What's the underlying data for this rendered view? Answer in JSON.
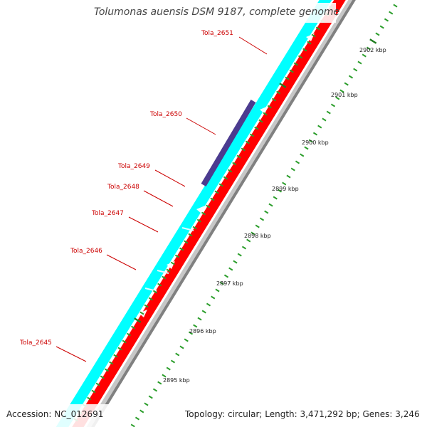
{
  "title": "Tolumonas auensis DSM 9187, complete genome",
  "accession_text": "Accession: NC_012691",
  "summary_text": "Topology: circular; Length: 3,471,292 bp; Genes: 3,246",
  "colors": {
    "forward_gene": "#00ffff",
    "reverse_gene": "#ff0000",
    "highlight_gene": "#4b3b8f",
    "backbone": "#808080",
    "major_tick": "#1f7d1f",
    "minor_tick": "#2a9d2a",
    "gene_label": "#cc0000"
  },
  "gene_labels": [
    "Tola_2651",
    "Tola_2650",
    "Tola_2649",
    "Tola_2648",
    "Tola_2647",
    "Tola_2646",
    "Tola_2645"
  ],
  "kbp_labels": [
    "2902 kbp",
    "2901 kbp",
    "2900 kbp",
    "2899 kbp",
    "2898 kbp",
    "2897 kbp",
    "2896 kbp",
    "2895 kbp"
  ]
}
